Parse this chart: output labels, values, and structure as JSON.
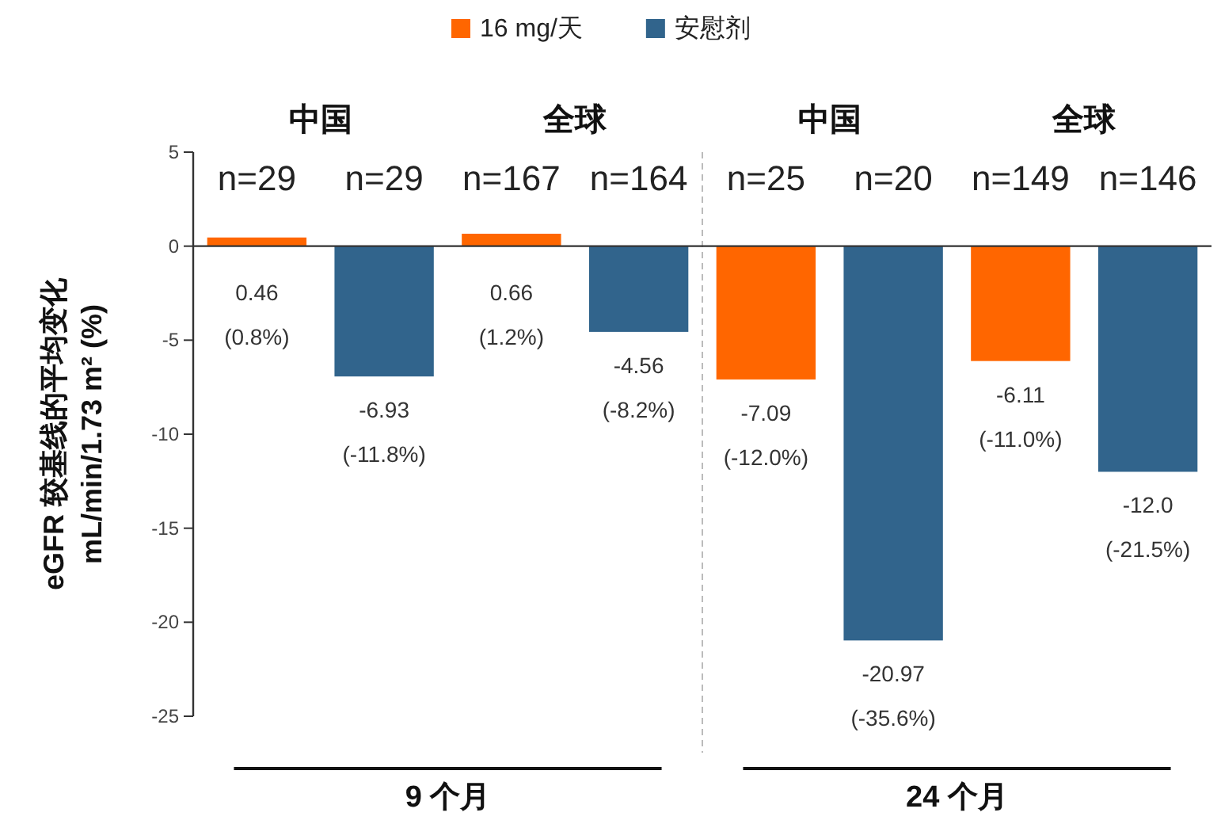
{
  "chart_data": {
    "type": "bar",
    "categories": [
      "n=29",
      "n=29",
      "n=167",
      "n=164",
      "n=25",
      "n=20",
      "n=149",
      "n=146"
    ],
    "series": [
      {
        "name": "16 mg/天",
        "color": "#ff6600",
        "values": [
          0.46,
          null,
          0.66,
          null,
          -7.09,
          null,
          -6.11,
          null
        ],
        "value_labels": [
          "0.46\n(0.8%)",
          null,
          "0.66\n(1.2%)",
          null,
          "-7.09\n(-12.0%)",
          null,
          "-6.11\n(-11.0%)",
          null
        ]
      },
      {
        "name": "安慰剂",
        "color": "#31648c",
        "values": [
          null,
          -6.93,
          null,
          -4.56,
          null,
          -20.97,
          null,
          -12.0
        ],
        "value_labels": [
          null,
          "-6.93\n(-11.8%)",
          null,
          "-4.56\n(-8.2%)",
          null,
          "-20.97\n(-35.6%)",
          null,
          "-12.0\n(-21.5%)"
        ]
      }
    ],
    "ylabel": "eGFR 较基线的平均变化\nmL/min/1.73 m² (%)",
    "ylim": [
      -25,
      5
    ],
    "yticks": [
      -25,
      -20,
      -15,
      -10,
      -5,
      0,
      5
    ],
    "grid": false,
    "legend": "top",
    "annotations": [
      "中国",
      "全球",
      "中国",
      "全球",
      "9 个月",
      "24 个月"
    ]
  }
}
